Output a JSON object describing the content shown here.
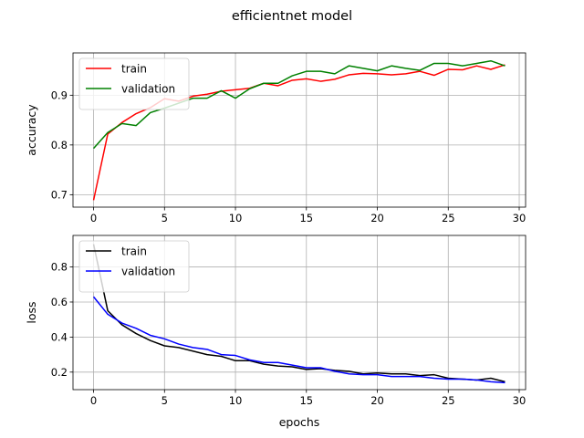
{
  "figure": {
    "title": "efficientnet model"
  },
  "chart_data": [
    {
      "type": "line",
      "title": "",
      "xlabel": "",
      "ylabel": "accuracy",
      "xlim": [
        -1.45,
        30.45
      ],
      "ylim": [
        0.675,
        0.985
      ],
      "xticks": [
        0,
        5,
        10,
        15,
        20,
        25,
        30
      ],
      "yticks": [
        0.7,
        0.8,
        0.9
      ],
      "ytick_labels": [
        "0.7",
        "0.8",
        "0.9"
      ],
      "grid": true,
      "legend_position": "top-left",
      "x": [
        0,
        1,
        2,
        3,
        4,
        5,
        6,
        7,
        8,
        9,
        10,
        11,
        12,
        13,
        14,
        15,
        16,
        17,
        18,
        19,
        20,
        21,
        22,
        23,
        24,
        25,
        26,
        27,
        28,
        29
      ],
      "series": [
        {
          "name": "train",
          "color": "#ff0000",
          "values": [
            0.689,
            0.822,
            0.845,
            0.863,
            0.875,
            0.893,
            0.888,
            0.898,
            0.902,
            0.908,
            0.911,
            0.914,
            0.924,
            0.919,
            0.93,
            0.933,
            0.928,
            0.932,
            0.941,
            0.944,
            0.943,
            0.941,
            0.943,
            0.948,
            0.94,
            0.952,
            0.951,
            0.959,
            0.952,
            0.961
          ]
        },
        {
          "name": "validation",
          "color": "#008000",
          "values": [
            0.793,
            0.825,
            0.843,
            0.839,
            0.865,
            0.874,
            0.884,
            0.894,
            0.894,
            0.909,
            0.894,
            0.913,
            0.924,
            0.924,
            0.939,
            0.948,
            0.948,
            0.943,
            0.959,
            0.954,
            0.949,
            0.959,
            0.954,
            0.95,
            0.964,
            0.964,
            0.959,
            0.964,
            0.969,
            0.959
          ]
        }
      ]
    },
    {
      "type": "line",
      "title": "",
      "xlabel": "epochs",
      "ylabel": "loss",
      "xlim": [
        -1.45,
        30.45
      ],
      "ylim": [
        0.1,
        0.98
      ],
      "xticks": [
        0,
        5,
        10,
        15,
        20,
        25,
        30
      ],
      "yticks": [
        0.2,
        0.4,
        0.6,
        0.8
      ],
      "ytick_labels": [
        "0.2",
        "0.4",
        "0.6",
        "0.8"
      ],
      "grid": true,
      "legend_position": "top-left",
      "x": [
        0,
        1,
        2,
        3,
        4,
        5,
        6,
        7,
        8,
        9,
        10,
        11,
        12,
        13,
        14,
        15,
        16,
        17,
        18,
        19,
        20,
        21,
        22,
        23,
        24,
        25,
        26,
        27,
        28,
        29
      ],
      "series": [
        {
          "name": "train",
          "color": "#000000",
          "values": [
            0.93,
            0.55,
            0.47,
            0.42,
            0.38,
            0.35,
            0.34,
            0.32,
            0.3,
            0.29,
            0.265,
            0.265,
            0.245,
            0.235,
            0.23,
            0.215,
            0.22,
            0.21,
            0.205,
            0.19,
            0.195,
            0.19,
            0.19,
            0.18,
            0.185,
            0.165,
            0.16,
            0.155,
            0.165,
            0.145
          ]
        },
        {
          "name": "validation",
          "color": "#0000ff",
          "values": [
            0.63,
            0.53,
            0.48,
            0.45,
            0.41,
            0.39,
            0.36,
            0.34,
            0.33,
            0.3,
            0.295,
            0.27,
            0.255,
            0.255,
            0.24,
            0.225,
            0.225,
            0.205,
            0.19,
            0.185,
            0.185,
            0.175,
            0.175,
            0.175,
            0.165,
            0.16,
            0.16,
            0.155,
            0.145,
            0.14
          ]
        }
      ]
    }
  ]
}
